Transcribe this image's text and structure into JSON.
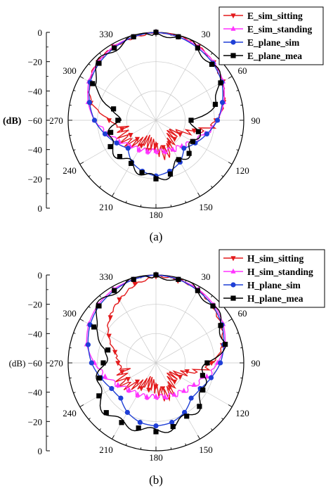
{
  "panels": [
    {
      "label": "(a)",
      "ylabel": "(dB)",
      "r_ticks": [
        "0",
        "−20",
        "−40",
        "−60",
        "−40",
        "−20",
        "0"
      ],
      "angle_ticks": [
        "0",
        "30",
        "60",
        "90",
        "120",
        "150",
        "180",
        "210",
        "240",
        "270",
        "300",
        "330"
      ],
      "legend": [
        "E_sim_sitting",
        "E_sim_standing",
        "E_plane_sim",
        "E_plane_mea"
      ]
    },
    {
      "label": "(b)",
      "ylabel": "(dB)",
      "r_ticks": [
        "0",
        "−20",
        "−40",
        "(dB) −60",
        "−40",
        "−20",
        "0"
      ],
      "angle_ticks": [
        "0",
        "30",
        "60",
        "90",
        "120",
        "150",
        "180",
        "210",
        "240",
        "270",
        "300",
        "330"
      ],
      "legend": [
        "H_sim_sitting",
        "H_sim_standing",
        "H_plane_sim",
        "H_plane_mea"
      ]
    }
  ],
  "colors": {
    "sitting": "#e31a1c",
    "standing": "#ff33ff",
    "sim": "#1f3fd6",
    "mea": "#000000"
  },
  "chart_data": [
    {
      "type": "polar-line",
      "label": "(a)",
      "r_axis_label": "(dB)",
      "r_range": [
        -60,
        0
      ],
      "angle_unit": "degrees",
      "angle_ticks": [
        0,
        30,
        60,
        90,
        120,
        150,
        180,
        210,
        240,
        270,
        300,
        330
      ],
      "angles": [
        0,
        15,
        30,
        45,
        60,
        75,
        90,
        105,
        120,
        135,
        150,
        165,
        180,
        195,
        210,
        225,
        240,
        255,
        270,
        285,
        300,
        315,
        330,
        345
      ],
      "series": [
        {
          "name": "E_sim_sitting",
          "marker": "triangle-down",
          "values": [
            0,
            -1,
            -2,
            -4,
            -7,
            -12,
            -19,
            -33,
            -41,
            -42,
            -42,
            -41,
            -43,
            -39,
            -40,
            -42,
            -40,
            -36,
            -28,
            -14,
            -8,
            -4,
            -2,
            -1
          ]
        },
        {
          "name": "E_sim_standing",
          "marker": "triangle-up",
          "values": [
            0,
            -1,
            -2,
            -4,
            -7,
            -12,
            -18,
            -25,
            -31,
            -35,
            -37,
            -38,
            -39,
            -38,
            -37,
            -35,
            -31,
            -25,
            -18,
            -12,
            -7,
            -4,
            -2,
            -1
          ]
        },
        {
          "name": "E_plane_sim",
          "marker": "circle",
          "values": [
            0,
            -1,
            -3,
            -5,
            -8,
            -13,
            -18,
            -24,
            -29,
            -33,
            -27,
            -24,
            -22,
            -24,
            -27,
            -33,
            -29,
            -24,
            -18,
            -13,
            -8,
            -5,
            -3,
            -1
          ]
        },
        {
          "name": "E_plane_mea",
          "marker": "square",
          "values": [
            0,
            -1,
            -3,
            -6,
            -9,
            -18,
            -36,
            -30,
            -31,
            -28,
            -29,
            -22,
            -20,
            -23,
            -26,
            -25,
            -24,
            -28,
            -34,
            -30,
            -10,
            -5,
            -3,
            -1
          ]
        }
      ]
    },
    {
      "type": "polar-line",
      "label": "(b)",
      "r_axis_label": "(dB)",
      "r_range": [
        -60,
        0
      ],
      "angle_unit": "degrees",
      "angle_ticks": [
        0,
        30,
        60,
        90,
        120,
        150,
        180,
        210,
        240,
        270,
        300,
        330
      ],
      "angles": [
        0,
        15,
        30,
        45,
        60,
        75,
        90,
        105,
        120,
        135,
        150,
        165,
        180,
        195,
        210,
        225,
        240,
        255,
        270,
        285,
        300,
        315,
        330,
        345
      ],
      "series": [
        {
          "name": "H_sim_sitting",
          "marker": "triangle-down",
          "values": [
            -1,
            -2,
            -3,
            -5,
            -8,
            -13,
            -22,
            -38,
            -41,
            -42,
            -41,
            -42,
            -44,
            -41,
            -40,
            -42,
            -38,
            -36,
            -34,
            -31,
            -23,
            -16,
            -10,
            -4
          ]
        },
        {
          "name": "H_sim_standing",
          "marker": "triangle-up",
          "values": [
            0,
            -1,
            -2,
            -4,
            -7,
            -11,
            -18,
            -24,
            -30,
            -33,
            -35,
            -36,
            -37,
            -36,
            -35,
            -34,
            -30,
            -24,
            -18,
            -11,
            -7,
            -4,
            -2,
            -1
          ]
        },
        {
          "name": "H_plane_sim",
          "marker": "circle",
          "values": [
            0,
            -1,
            -3,
            -5,
            -8,
            -12,
            -16,
            -21,
            -25,
            -26,
            -21,
            -18,
            -17,
            -18,
            -21,
            -26,
            -25,
            -21,
            -16,
            -12,
            -8,
            -5,
            -3,
            -1
          ]
        },
        {
          "name": "H_plane_mea",
          "marker": "square",
          "values": [
            0,
            -1,
            -3,
            -5,
            -9,
            -11,
            -25,
            -27,
            -23,
            -18,
            -18,
            -15,
            -13,
            -14,
            -13,
            -12,
            -15,
            -20,
            -24,
            -26,
            -11,
            -5,
            -3,
            -1
          ]
        }
      ]
    }
  ]
}
